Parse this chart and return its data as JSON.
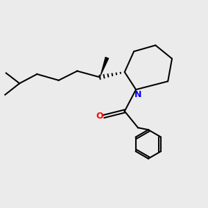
{
  "background_color": "#ebebeb",
  "line_color": "#000000",
  "N_color": "#0000ff",
  "O_color": "#ff0000",
  "linewidth": 1.5,
  "figsize": [
    3.0,
    3.0
  ],
  "dpi": 100,
  "xlim": [
    0,
    10
  ],
  "ylim": [
    0,
    10
  ]
}
